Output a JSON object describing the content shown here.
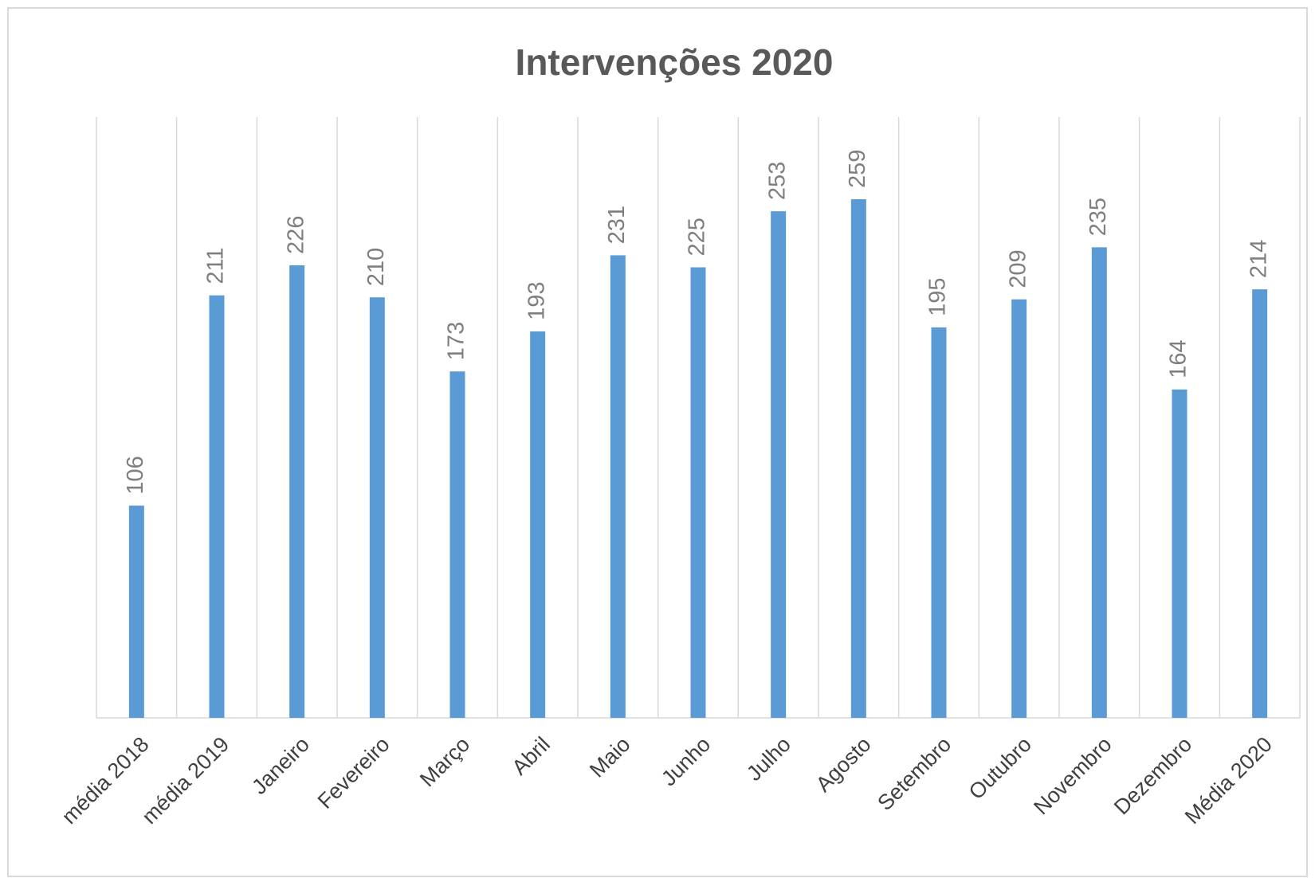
{
  "chart_data": {
    "type": "bar",
    "title": "Intervenções 2020",
    "categories": [
      "média 2018",
      "média 2019",
      "Janeiro",
      "Fevereiro",
      "Março",
      "Abril",
      "Maio",
      "Junho",
      "Julho",
      "Agosto",
      "Setembro",
      "Outubro",
      "Novembro",
      "Dezembro",
      "Média 2020"
    ],
    "values": [
      106,
      211,
      226,
      210,
      173,
      193,
      231,
      225,
      253,
      259,
      195,
      209,
      235,
      164,
      214
    ],
    "color": "#5b9bd5",
    "ylim": [
      0,
      300
    ],
    "grid": true
  }
}
